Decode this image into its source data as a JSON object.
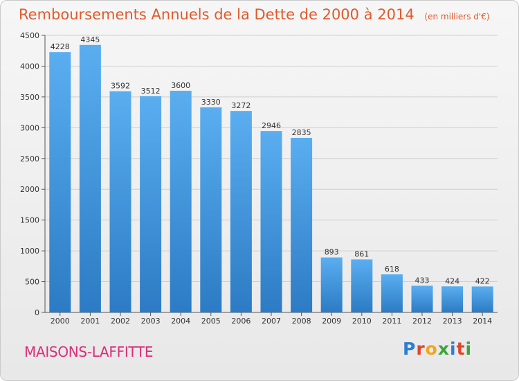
{
  "title": "Remboursements Annuels de la Dette de 2000 à 2014",
  "subtitle": "(en milliers d'€)",
  "city": "MAISONS-LAFFITTE",
  "logo": "Proxiti",
  "colors": {
    "title": "#e05a2b",
    "city": "#d92f7a",
    "bar_top": "#5aaef0",
    "bar_bottom": "#2c7bc4"
  },
  "chart_data": {
    "type": "bar",
    "categories": [
      "2000",
      "2001",
      "2002",
      "2003",
      "2004",
      "2005",
      "2006",
      "2007",
      "2008",
      "2009",
      "2010",
      "2011",
      "2012",
      "2013",
      "2014"
    ],
    "values": [
      4228,
      4345,
      3592,
      3512,
      3600,
      3330,
      3272,
      2946,
      2835,
      893,
      861,
      618,
      433,
      424,
      422
    ],
    "ylim": [
      0,
      4500
    ],
    "yticks": [
      0,
      500,
      1000,
      1500,
      2000,
      2500,
      3000,
      3500,
      4000,
      4500
    ],
    "grid": true,
    "data_labels": true
  }
}
